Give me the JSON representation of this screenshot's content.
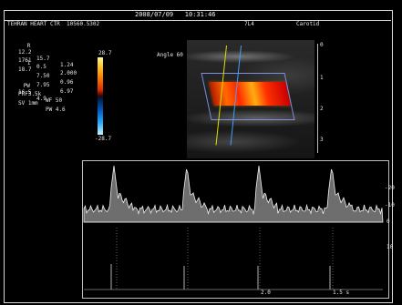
{
  "header": {
    "datetime": "2008/07/09   10:31:46",
    "subtitle": "TEHRAN HEART CTR  10560.5302",
    "probe": "7L4",
    "preset": "Carotid"
  },
  "measurements": {
    "rows": [
      [
        "R",
        "12.2",
        "15.7",
        "1.24"
      ],
      [
        "",
        "1761",
        "0.5",
        "2.000"
      ],
      [
        "1",
        "18.7",
        "7.50",
        "0.96"
      ],
      [
        "",
        "",
        "7.95",
        "6.97"
      ],
      [
        "PW",
        "16.5",
        "4.9",
        ""
      ],
      [
        "",
        "PRF3.5k",
        "WF 50",
        ""
      ],
      [
        "",
        "SV 1mm",
        "PW 4.6",
        ""
      ]
    ]
  },
  "colorbar": {
    "top_label": "28.7",
    "bottom_label": "-28.7"
  },
  "bmode": {
    "label": "Angle 60",
    "depth_marks": [
      "0",
      "1",
      "2",
      "3"
    ]
  },
  "doppler": {
    "scale_right": [
      "-20",
      "-10",
      "0",
      "10"
    ],
    "bottom_labels": [
      "2.0",
      "1.5 s"
    ]
  },
  "colors": {
    "trace": "#f0f0f0",
    "frame": "#d8d8d8",
    "background": "#000000"
  }
}
